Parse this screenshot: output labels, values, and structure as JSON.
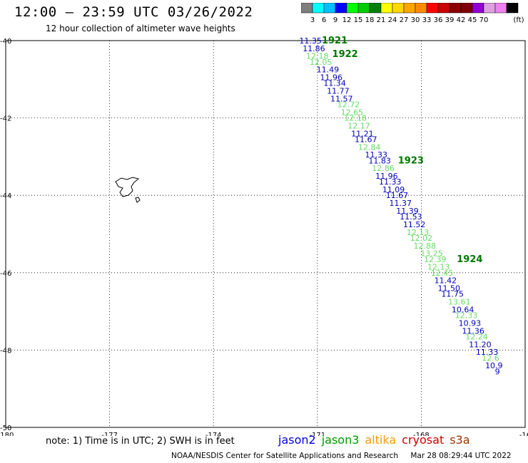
{
  "title": "12:00 – 23:59 UTC 03/26/2022",
  "subtitle": "12 hour collection of altimeter wave heights",
  "scale": {
    "labels": [
      "3",
      "6",
      "9",
      "12",
      "15",
      "18",
      "21",
      "24",
      "27",
      "30",
      "33",
      "36",
      "39",
      "42",
      "45",
      "70"
    ],
    "unit": "(ft)",
    "colors": [
      "#7f7f7f",
      "#00ffff",
      "#00bfff",
      "#0000ff",
      "#00ff00",
      "#00cc00",
      "#008000",
      "#ffff00",
      "#ffd700",
      "#ffa500",
      "#ff8c00",
      "#ff0000",
      "#cc0000",
      "#8b0000",
      "#800000",
      "#9400d3",
      "#dda0dd",
      "#ee82ee",
      "#000000"
    ]
  },
  "axes": {
    "lon_ticks": [
      "-180",
      "-177",
      "-174",
      "-171",
      "-168",
      "-16"
    ],
    "lat_ticks": [
      "-40",
      "-42",
      "-44",
      "-46",
      "-48",
      "-50"
    ]
  },
  "passes": [
    {
      "mission": "jason2",
      "color": "#0000bb",
      "label": "1921"
    },
    {
      "mission": "jason3",
      "color": "#66dd66",
      "label": "1922"
    }
  ],
  "orbit_labels": [
    "1921",
    "1922",
    "1923",
    "1924"
  ],
  "orbit_label_color": "#007700",
  "heights": [
    {
      "v": "11.35",
      "c": "j2",
      "lon": -171.2,
      "lat": -40.0
    },
    {
      "v": "11.86",
      "c": "j2",
      "lon": -171.1,
      "lat": -40.2
    },
    {
      "v": "12.18",
      "c": "j3",
      "lon": -171.0,
      "lat": -40.4
    },
    {
      "v": "12.05",
      "c": "j3",
      "lon": -170.9,
      "lat": -40.55
    },
    {
      "v": "11.49",
      "c": "j2",
      "lon": -170.7,
      "lat": -40.75
    },
    {
      "v": "11.96",
      "c": "j2",
      "lon": -170.6,
      "lat": -40.95
    },
    {
      "v": "11.34",
      "c": "j2",
      "lon": -170.5,
      "lat": -41.1
    },
    {
      "v": "11.77",
      "c": "j2",
      "lon": -170.4,
      "lat": -41.3
    },
    {
      "v": "11.57",
      "c": "j2",
      "lon": -170.3,
      "lat": -41.5
    },
    {
      "v": "12.72",
      "c": "j3",
      "lon": -170.1,
      "lat": -41.65
    },
    {
      "v": "12.65",
      "c": "j3",
      "lon": -170.0,
      "lat": -41.85
    },
    {
      "v": "12.18",
      "c": "j3",
      "lon": -169.9,
      "lat": -42.0
    },
    {
      "v": "12.17",
      "c": "j3",
      "lon": -169.8,
      "lat": -42.2
    },
    {
      "v": "11.21",
      "c": "j2",
      "lon": -169.7,
      "lat": -42.4
    },
    {
      "v": "11.67",
      "c": "j2",
      "lon": -169.6,
      "lat": -42.55
    },
    {
      "v": "12.84",
      "c": "j3",
      "lon": -169.5,
      "lat": -42.75
    },
    {
      "v": "11.33",
      "c": "j2",
      "lon": -169.3,
      "lat": -42.95
    },
    {
      "v": "11.83",
      "c": "j2",
      "lon": -169.2,
      "lat": -43.1
    },
    {
      "v": "12.86",
      "c": "j3",
      "lon": -169.1,
      "lat": -43.3
    },
    {
      "v": "11.96",
      "c": "j2",
      "lon": -169.0,
      "lat": -43.5
    },
    {
      "v": "11.33",
      "c": "j2",
      "lon": -168.9,
      "lat": -43.65
    },
    {
      "v": "11.09",
      "c": "j2",
      "lon": -168.8,
      "lat": -43.85
    },
    {
      "v": "11.67",
      "c": "j2",
      "lon": -168.7,
      "lat": -44.0
    },
    {
      "v": "11.37",
      "c": "j2",
      "lon": -168.6,
      "lat": -44.2
    },
    {
      "v": "11.39",
      "c": "j2",
      "lon": -168.4,
      "lat": -44.4
    },
    {
      "v": "11.53",
      "c": "j2",
      "lon": -168.3,
      "lat": -44.55
    },
    {
      "v": "11.52",
      "c": "j2",
      "lon": -168.2,
      "lat": -44.75
    },
    {
      "v": "12.13",
      "c": "j3",
      "lon": -168.1,
      "lat": -44.95
    },
    {
      "v": "12.02",
      "c": "j3",
      "lon": -168.0,
      "lat": -45.1
    },
    {
      "v": "12.88",
      "c": "j3",
      "lon": -167.9,
      "lat": -45.3
    },
    {
      "v": "13.25",
      "c": "j3",
      "lon": -167.7,
      "lat": -45.5
    },
    {
      "v": "12.39",
      "c": "j3",
      "lon": -167.6,
      "lat": -45.65
    },
    {
      "v": "12.13",
      "c": "j3",
      "lon": -167.5,
      "lat": -45.85
    },
    {
      "v": "12.45",
      "c": "j3",
      "lon": -167.4,
      "lat": -46.0
    },
    {
      "v": "11.42",
      "c": "j2",
      "lon": -167.3,
      "lat": -46.2
    },
    {
      "v": "11.50",
      "c": "j2",
      "lon": -167.2,
      "lat": -46.4
    },
    {
      "v": "11.75",
      "c": "j2",
      "lon": -167.1,
      "lat": -46.55
    },
    {
      "v": "13.61",
      "c": "j3",
      "lon": -166.9,
      "lat": -46.75
    },
    {
      "v": "10.64",
      "c": "j2",
      "lon": -166.8,
      "lat": -46.95
    },
    {
      "v": "12.33",
      "c": "j3",
      "lon": -166.7,
      "lat": -47.1
    },
    {
      "v": "10.93",
      "c": "j2",
      "lon": -166.6,
      "lat": -47.3
    },
    {
      "v": "11.36",
      "c": "j2",
      "lon": -166.5,
      "lat": -47.5
    },
    {
      "v": "12.24",
      "c": "j3",
      "lon": -166.4,
      "lat": -47.65
    },
    {
      "v": "11.20",
      "c": "j2",
      "lon": -166.3,
      "lat": -47.85
    },
    {
      "v": "11.33",
      "c": "j2",
      "lon": -166.1,
      "lat": -48.05
    },
    {
      "v": "12.6",
      "c": "j3",
      "lon": -166.0,
      "lat": -48.2
    },
    {
      "v": "10.9",
      "c": "j2",
      "lon": -165.9,
      "lat": -48.4
    },
    {
      "v": "9",
      "c": "j2",
      "lon": -165.8,
      "lat": -48.55
    }
  ],
  "orbits": [
    {
      "label": "1921",
      "lon": -170.5,
      "lat": -40.0
    },
    {
      "label": "1922",
      "lon": -170.2,
      "lat": -40.35
    },
    {
      "label": "1923",
      "lon": -168.3,
      "lat": -43.1
    },
    {
      "label": "1924",
      "lon": -166.6,
      "lat": -45.65
    }
  ],
  "note": "note:  1) Time is in UTC;  2) SWH is in feet",
  "legend": [
    {
      "name": "jason2",
      "color": "#0000dd"
    },
    {
      "name": "jason3",
      "color": "#009900"
    },
    {
      "name": "altika",
      "color": "#ff9900"
    },
    {
      "name": "cryosat",
      "color": "#cc0000"
    },
    {
      "name": "s3a",
      "color": "#993300"
    }
  ],
  "footer": {
    "credit": "NOAA/NESDIS Center for Satellite Applications and Research",
    "timestamp": "Mar 28 08:29:44 UTC 2022"
  }
}
